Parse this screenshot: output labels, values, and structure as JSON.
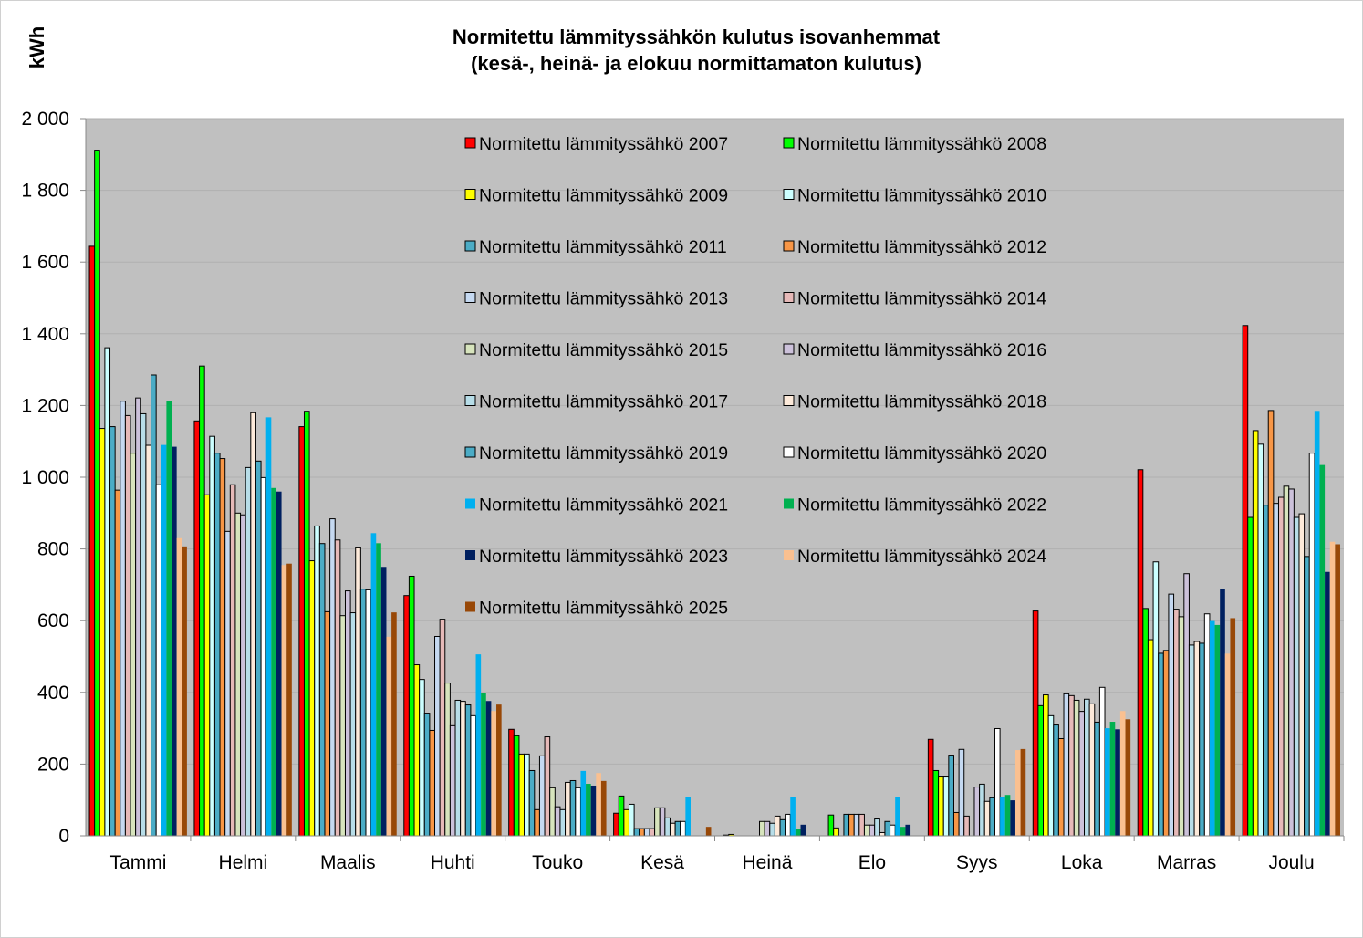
{
  "chart_data": {
    "type": "bar",
    "title": "Normitettu lämmityssähkön  kulutus isovanhemmat",
    "subtitle": "(kesä-, heinä- ja elokuu normittamaton  kulutus)",
    "ylabel": "kWh",
    "xlabel": "",
    "ylim": [
      0,
      2000
    ],
    "yticks": [
      0,
      200,
      400,
      600,
      800,
      1000,
      1200,
      1400,
      1600,
      1800,
      2000
    ],
    "ytick_labels": [
      "0",
      "200",
      "400",
      "600",
      "800",
      "1 000",
      "1 200",
      "1 400",
      "1 600",
      "1 800",
      "2 000"
    ],
    "grid": true,
    "legend_position": "top-center inside plot",
    "categories": [
      "Tammi",
      "Helmi",
      "Maalis",
      "Huhti",
      "Touko",
      "Kesä",
      "Heinä",
      "Elo",
      "Syys",
      "Loka",
      "Marras",
      "Joulu"
    ],
    "series": [
      {
        "name": "Normitettu lämmityssähkö 2007",
        "color": "#FF0000",
        "values": [
          1644,
          1157,
          1141,
          670,
          297,
          63,
          0,
          0,
          269,
          627,
          1021,
          1423
        ]
      },
      {
        "name": "Normitettu lämmityssähkö 2008",
        "color": "#00FF00",
        "values": [
          1912,
          1310,
          1184,
          724,
          279,
          111,
          2,
          58,
          182,
          363,
          634,
          888
        ]
      },
      {
        "name": "Normitettu lämmityssähkö 2009",
        "color": "#FFFF00",
        "values": [
          1136,
          951,
          767,
          477,
          228,
          73,
          4,
          22,
          164,
          393,
          547,
          1130
        ]
      },
      {
        "name": "Normitettu lämmityssähkö 2010",
        "color": "#CCFFFF",
        "values": [
          1361,
          1114,
          864,
          436,
          228,
          88,
          0,
          0,
          164,
          335,
          764,
          1092
        ]
      },
      {
        "name": "Normitettu lämmityssähkö 2011",
        "color": "#4BACC6",
        "values": [
          1141,
          1067,
          815,
          342,
          182,
          20,
          0,
          60,
          225,
          309,
          509,
          922
        ]
      },
      {
        "name": "Normitettu lämmityssähkö 2012",
        "color": "#F79646",
        "values": [
          964,
          1052,
          625,
          294,
          73,
          20,
          0,
          60,
          65,
          271,
          517,
          1186
        ]
      },
      {
        "name": "Normitettu lämmityssähkö 2013",
        "color": "#C5D9F1",
        "values": [
          1212,
          849,
          884,
          556,
          223,
          20,
          0,
          60,
          241,
          396,
          674,
          927
        ]
      },
      {
        "name": "Normitettu lämmityssähkö 2014",
        "color": "#E6B9B8",
        "values": [
          1172,
          979,
          825,
          604,
          276,
          20,
          0,
          60,
          55,
          391,
          632,
          944
        ]
      },
      {
        "name": "Normitettu lämmityssähkö 2015",
        "color": "#D7E4BD",
        "values": [
          1067,
          900,
          614,
          426,
          134,
          78,
          40,
          30,
          0,
          378,
          611,
          975
        ]
      },
      {
        "name": "Normitettu lämmityssähkö 2016",
        "color": "#CCC1DA",
        "values": [
          1221,
          895,
          683,
          307,
          81,
          78,
          40,
          30,
          136,
          347,
          731,
          967
        ]
      },
      {
        "name": "Normitettu lämmityssähkö 2017",
        "color": "#B7DDE8",
        "values": [
          1177,
          1027,
          622,
          378,
          73,
          50,
          35,
          47,
          144,
          381,
          532,
          888
        ]
      },
      {
        "name": "Normitettu lämmityssähkö 2018",
        "color": "#FDEADA",
        "values": [
          1089,
          1180,
          803,
          375,
          149,
          35,
          55,
          9,
          96,
          368,
          542,
          898
        ]
      },
      {
        "name": "Normitettu lämmityssähkö 2019",
        "color": "#4BACC6",
        "values": [
          1285,
          1045,
          688,
          365,
          154,
          40,
          45,
          40,
          106,
          317,
          537,
          779
        ]
      },
      {
        "name": "Normitettu lämmityssähkö 2020",
        "color": "#FFFFFF",
        "values": [
          979,
          999,
          686,
          335,
          134,
          40,
          60,
          30,
          299,
          414,
          619,
          1067
        ]
      },
      {
        "name": "Normitettu lämmityssähkö 2021",
        "color": "#00B0F0",
        "values": [
          1090,
          1167,
          844,
          506,
          181,
          107,
          107,
          107,
          107,
          300,
          599,
          1185
        ]
      },
      {
        "name": "Normitettu lämmityssähkö 2022",
        "color": "#00B050",
        "values": [
          1212,
          970,
          816,
          399,
          145,
          0,
          20,
          25,
          114,
          318,
          588,
          1034
        ]
      },
      {
        "name": "Normitettu lämmityssähkö 2023",
        "color": "#002060",
        "values": [
          1085,
          960,
          750,
          376,
          140,
          0,
          31,
          31,
          99,
          297,
          688,
          736
        ]
      },
      {
        "name": "Normitettu lämmityssähkö 2024",
        "color": "#FAC090",
        "values": [
          830,
          755,
          555,
          348,
          175,
          0,
          0,
          0,
          239,
          348,
          508,
          820
        ]
      },
      {
        "name": "Normitettu lämmityssähkö 2025",
        "color": "#984807",
        "values": [
          807,
          759,
          623,
          366,
          153,
          25,
          0,
          0,
          242,
          325,
          607,
          813
        ]
      }
    ]
  }
}
